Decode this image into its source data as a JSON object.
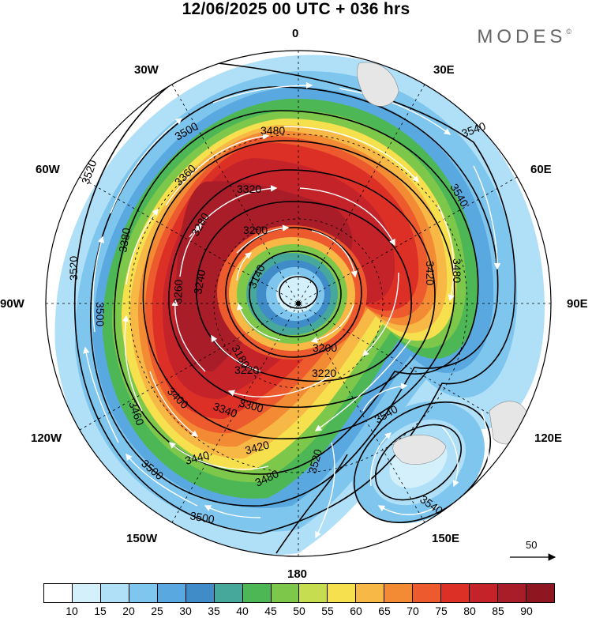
{
  "title": "12/06/2025  00 UTC  + 036 hrs",
  "brand": "MODES",
  "brand_mark": "©",
  "longitude_labels": {
    "top": "0",
    "nw": "30W",
    "ne": "30E",
    "wnw": "60W",
    "ene": "60E",
    "west": "90W",
    "east": "90E",
    "wsw": "120W",
    "ese": "120E",
    "sw": "150W",
    "se": "150E",
    "bottom": "180"
  },
  "colorbar": {
    "colors": [
      "#ffffff",
      "#d4f0fb",
      "#b0e0f7",
      "#7fc6ef",
      "#5aa8e0",
      "#3f8cc9",
      "#46a89a",
      "#4db756",
      "#7dc84a",
      "#c5dd4e",
      "#f6e04e",
      "#f7b845",
      "#f38a34",
      "#ec5a2e",
      "#dc2f26",
      "#c4232a",
      "#a81d27",
      "#8e1621"
    ],
    "labels": [
      "10",
      "15",
      "20",
      "25",
      "30",
      "35",
      "40",
      "45",
      "50",
      "55",
      "60",
      "65",
      "70",
      "75",
      "80",
      "85",
      "90"
    ]
  },
  "contour_labels": [
    "3540",
    "3540",
    "3540",
    "3540",
    "3520",
    "3520",
    "3520",
    "3500",
    "3500",
    "3500",
    "3500",
    "3480",
    "3480",
    "3480",
    "3460",
    "3440",
    "3420",
    "3420",
    "3400",
    "3380",
    "3360",
    "3340",
    "3320",
    "3300",
    "3280",
    "3260",
    "3240",
    "3220",
    "3220",
    "3200",
    "3200",
    "3180",
    "3140"
  ],
  "vector_reference": {
    "label": "50"
  }
}
